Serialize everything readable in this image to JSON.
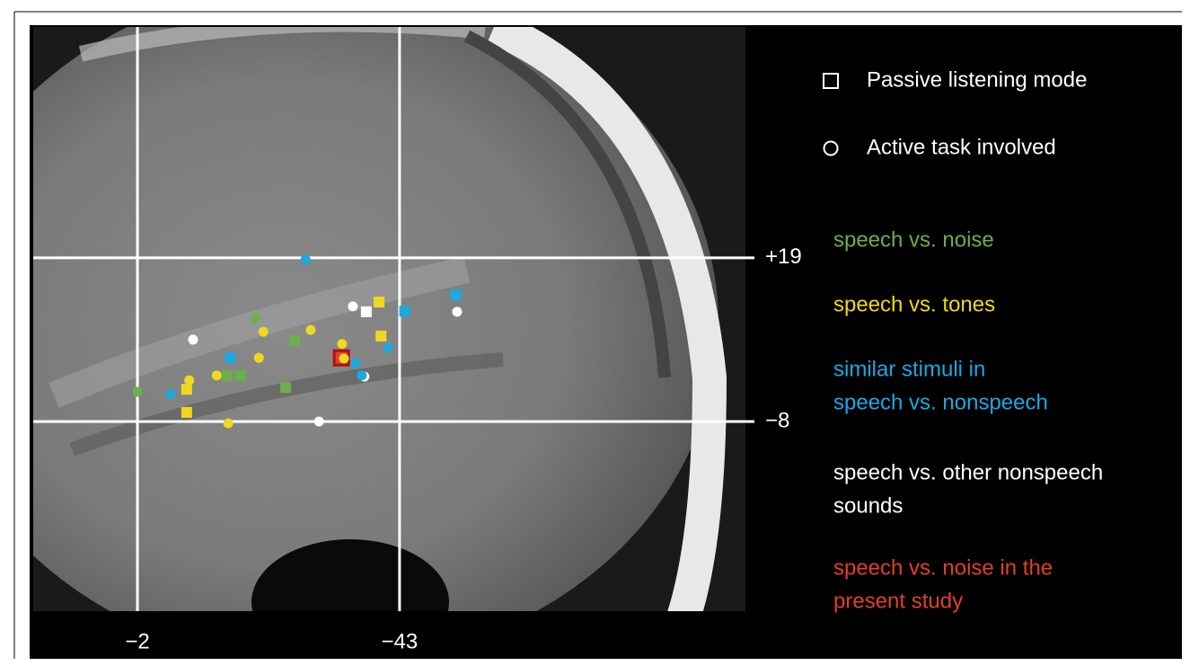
{
  "chart_data": {
    "type": "scatter",
    "xlim": [
      14.3,
      -97.1
    ],
    "ylim": [
      -39.3,
      57.1
    ],
    "xticks": [
      {
        "value": -2,
        "label": "−2"
      },
      {
        "value": -43,
        "label": "−43"
      }
    ],
    "yticks": [
      {
        "value": 19,
        "label": "+19"
      },
      {
        "value": -8,
        "label": "−8"
      }
    ],
    "grid": true,
    "marker_legend": [
      {
        "shape": "square",
        "label": "Passive listening mode"
      },
      {
        "shape": "circle",
        "label": "Active task involved"
      }
    ],
    "series": [
      {
        "name": [
          "speech vs. noise"
        ],
        "color": "#6ab04c",
        "x": [
          -2,
          -20.5,
          -26.6,
          -16.0,
          -18.1,
          -25.2
        ],
        "y": [
          -3.1,
          9.1,
          5.4,
          -0.4,
          -0.4,
          -2.4
        ],
        "markers": [
          "circle",
          "circle",
          "square",
          "square",
          "square",
          "square"
        ]
      },
      {
        "name": [
          "speech vs. tones"
        ],
        "color": "#f0d820",
        "x": [
          -21.7,
          -29.1,
          -21.0,
          -14.4,
          -10.1,
          -34.0,
          -34.3,
          -16.2,
          -40.1,
          -39.8,
          -9.7,
          -9.7
        ],
        "y": [
          6.8,
          7.1,
          2.5,
          -0.4,
          -1.2,
          4.8,
          2.4,
          -8.3,
          6.1,
          11.7,
          -2.7,
          -6.5
        ],
        "markers": [
          "circle",
          "circle",
          "circle",
          "circle",
          "circle",
          "circle",
          "circle",
          "circle",
          "square",
          "square",
          "square",
          "square"
        ]
      },
      {
        "name": [
          "similar stimuli in",
          "speech vs. nonspeech"
        ],
        "color": "#1ea8e0",
        "x": [
          -28.3,
          -7.2,
          -36.1,
          -41.2,
          -16.5,
          -43.8,
          -51.8,
          -37.1
        ],
        "y": [
          18.7,
          -3.5,
          1.6,
          4.2,
          2.5,
          10.2,
          12.9,
          -0.4
        ],
        "markers": [
          "circle",
          "circle",
          "circle",
          "circle",
          "square",
          "square",
          "square",
          "circle"
        ]
      },
      {
        "name": [
          "speech vs. other nonspeech",
          "sounds"
        ],
        "color": "#ffffff",
        "x": [
          -10.7,
          -35.7,
          -37.8,
          -52.0,
          -30.4,
          -37.5
        ],
        "y": [
          5.5,
          11.0,
          10.1,
          10.1,
          -8.0,
          -0.6
        ],
        "markers": [
          "circle",
          "circle",
          "square",
          "circle",
          "circle",
          "circle"
        ]
      },
      {
        "name": [
          "speech vs. noise in the",
          "present study"
        ],
        "color": "#e0402a",
        "x": [
          -33.9
        ],
        "y": [
          2.5
        ],
        "markers": [
          "square"
        ]
      }
    ]
  }
}
